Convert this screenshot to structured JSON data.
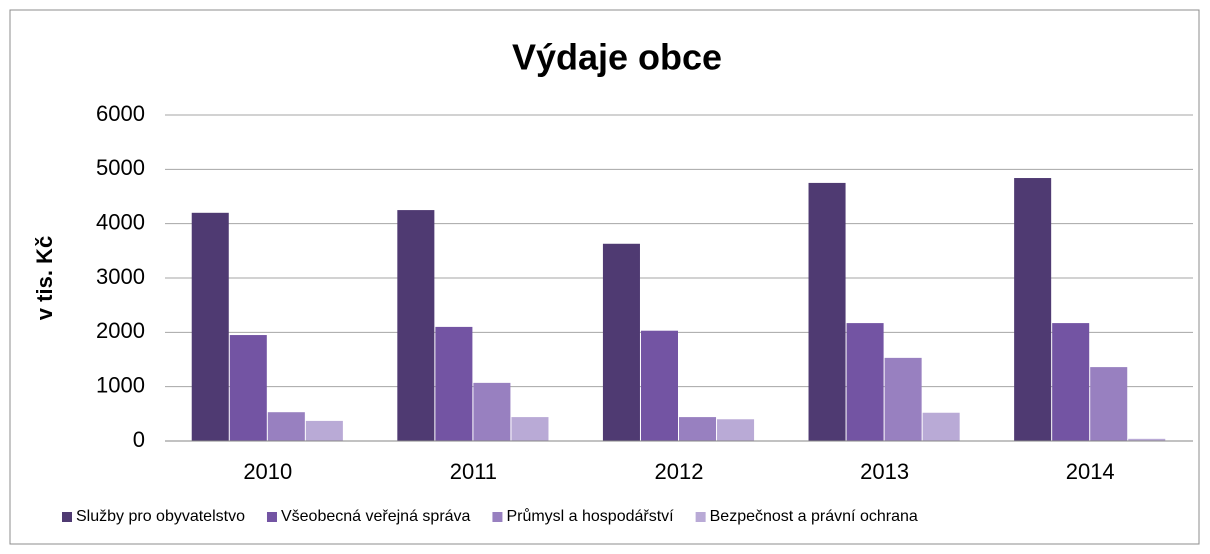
{
  "chart_data": {
    "type": "bar",
    "title": "Výdaje obce",
    "y_label": "v tis. Kč",
    "categories": [
      "2010",
      "2011",
      "2012",
      "2013",
      "2014"
    ],
    "series": [
      {
        "name": "Služby pro obyvatelstvo",
        "color": "#4f3a72",
        "values": [
          4200,
          4250,
          3630,
          4750,
          4840
        ]
      },
      {
        "name": "Všeobecná veřejná správa",
        "color": "#7354a3",
        "values": [
          1950,
          2100,
          2030,
          2170,
          2170
        ]
      },
      {
        "name": "Průmysl a hospodářství",
        "color": "#9880c0",
        "values": [
          530,
          1070,
          440,
          1530,
          1360
        ]
      },
      {
        "name": "Bezpečnost a právní ochrana",
        "color": "#b9aad6",
        "values": [
          370,
          440,
          400,
          520,
          40
        ]
      }
    ],
    "ylim": [
      0,
      6000
    ],
    "yticks": [
      0,
      1000,
      2000,
      3000,
      4000,
      5000,
      6000
    ],
    "grid": true,
    "legend": "bottom"
  }
}
